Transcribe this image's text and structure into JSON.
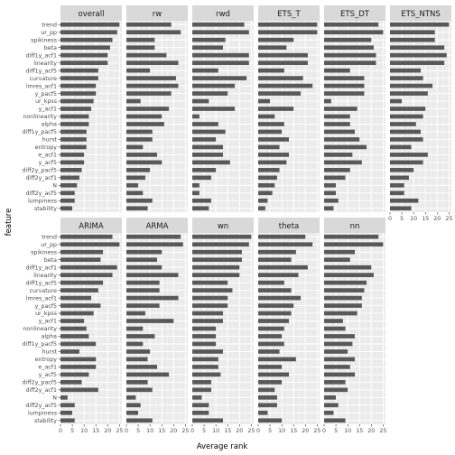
{
  "chart_data": {
    "type": "bar",
    "orientation": "horizontal",
    "xlabel": "Average rank",
    "ylabel": "feature",
    "xlim": [
      0,
      26
    ],
    "xticks": [
      0,
      5,
      10,
      15,
      20,
      25
    ],
    "features": [
      "trend",
      "ur_pp",
      "spikiness",
      "beta",
      "diff1y_acf1",
      "linearity",
      "diff1y_acf5",
      "curvature",
      "lmres_acf1",
      "y_pacf5",
      "ur_kpss",
      "y_acf1",
      "nonlinearity",
      "alpha",
      "diff1y_pacf5",
      "hurst",
      "entropy",
      "e_acf1",
      "y_acf5",
      "diff2y_pacf5",
      "diff2y_acf1",
      "N",
      "diff2y_acf5",
      "lumpiness",
      "stability"
    ],
    "facets": [
      {
        "name": "overall",
        "values": [
          25,
          24,
          22,
          21,
          20,
          20,
          16,
          16,
          15,
          15,
          14,
          13,
          12,
          12,
          11,
          11,
          11,
          10,
          10,
          9,
          8,
          7,
          6,
          6,
          5
        ]
      },
      {
        "name": "rw",
        "values": [
          19,
          23,
          12,
          12,
          17,
          22,
          10,
          21,
          22,
          19,
          6,
          18,
          15,
          16,
          11,
          11,
          7,
          13,
          15,
          10,
          8,
          5,
          7,
          11,
          9
        ]
      },
      {
        "name": "rwd",
        "values": [
          22,
          24,
          14,
          13,
          24,
          24,
          11,
          23,
          18,
          15,
          7,
          18,
          3,
          11,
          14,
          10,
          13,
          13,
          16,
          10,
          8,
          3,
          3,
          8,
          7
        ]
      },
      {
        "name": "ETS_T",
        "values": [
          25,
          25,
          15,
          12,
          21,
          21,
          11,
          19,
          23,
          18,
          5,
          15,
          7,
          11,
          10,
          13,
          9,
          13,
          12,
          9,
          8,
          7,
          6,
          4,
          3
        ]
      },
      {
        "name": "ETS_DT",
        "values": [
          23,
          25,
          20,
          21,
          22,
          22,
          11,
          17,
          17,
          17,
          3,
          14,
          11,
          11,
          13,
          15,
          18,
          12,
          16,
          11,
          9,
          5,
          5,
          6,
          4
        ]
      },
      {
        "name": "ETS_NTNS",
        "values": [
          25,
          19,
          19,
          23,
          24,
          23,
          13,
          14,
          18,
          16,
          5,
          15,
          14,
          11,
          13,
          14,
          9,
          16,
          14,
          10,
          8,
          6,
          6,
          12,
          9
        ]
      },
      {
        "name": "ARIMA",
        "values": [
          22,
          25,
          18,
          17,
          24,
          22,
          18,
          16,
          13,
          17,
          14,
          10,
          11,
          12,
          15,
          8,
          15,
          15,
          12,
          9,
          16,
          3,
          6,
          5,
          6
        ]
      },
      {
        "name": "ARMA",
        "values": [
          23,
          24,
          15,
          13,
          15,
          22,
          14,
          14,
          22,
          14,
          8,
          20,
          7,
          12,
          7,
          10,
          9,
          13,
          18,
          9,
          11,
          4,
          6,
          5,
          11
        ]
      },
      {
        "name": "wn",
        "values": [
          25,
          24,
          21,
          21,
          20,
          20,
          15,
          17,
          15,
          15,
          13,
          13,
          10,
          10,
          10,
          13,
          11,
          11,
          12,
          8,
          8,
          4,
          7,
          7,
          13
        ]
      },
      {
        "name": "theta",
        "values": [
          20,
          23,
          16,
          14,
          21,
          17,
          11,
          14,
          18,
          15,
          14,
          13,
          11,
          10,
          11,
          9,
          16,
          10,
          13,
          10,
          7,
          8,
          8,
          4,
          10
        ]
      },
      {
        "name": "nn",
        "values": [
          23,
          25,
          13,
          11,
          20,
          21,
          18,
          17,
          16,
          16,
          14,
          8,
          9,
          13,
          12,
          10,
          13,
          11,
          13,
          9,
          10,
          5,
          6,
          4,
          9
        ]
      }
    ]
  }
}
